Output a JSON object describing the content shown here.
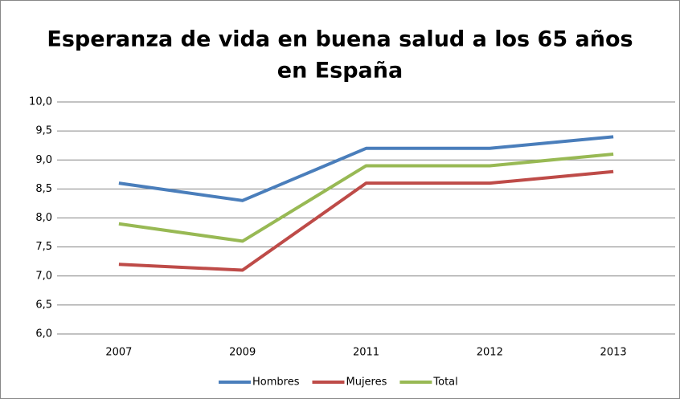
{
  "chart_data": {
    "type": "line",
    "title": [
      "Esperanza de vida en buena salud a los 65 años",
      "en España"
    ],
    "categories": [
      "2007",
      "2009",
      "2011",
      "2012",
      "2013"
    ],
    "series": [
      {
        "name": "Hombres",
        "color": "#4a7ebb",
        "values": [
          8.6,
          8.3,
          9.2,
          9.2,
          9.4
        ]
      },
      {
        "name": "Mujeres",
        "color": "#be4b48",
        "values": [
          7.2,
          7.1,
          8.6,
          8.6,
          8.8
        ]
      },
      {
        "name": "Total",
        "color": "#98b954",
        "values": [
          7.9,
          7.6,
          8.9,
          8.9,
          9.1
        ]
      }
    ],
    "ylim": [
      6,
      10
    ],
    "yticks": [
      {
        "value": 6,
        "label": "6,0"
      },
      {
        "value": 6.5,
        "label": "6,5"
      },
      {
        "value": 7,
        "label": "7,0"
      },
      {
        "value": 7.5,
        "label": "7,5"
      },
      {
        "value": 8,
        "label": "8,0"
      },
      {
        "value": 8.5,
        "label": "8,5"
      },
      {
        "value": 9,
        "label": "9,0"
      },
      {
        "value": 9.5,
        "label": "9,5"
      },
      {
        "value": 10,
        "label": "10,0"
      }
    ],
    "grid": true,
    "legend": "bottom"
  }
}
